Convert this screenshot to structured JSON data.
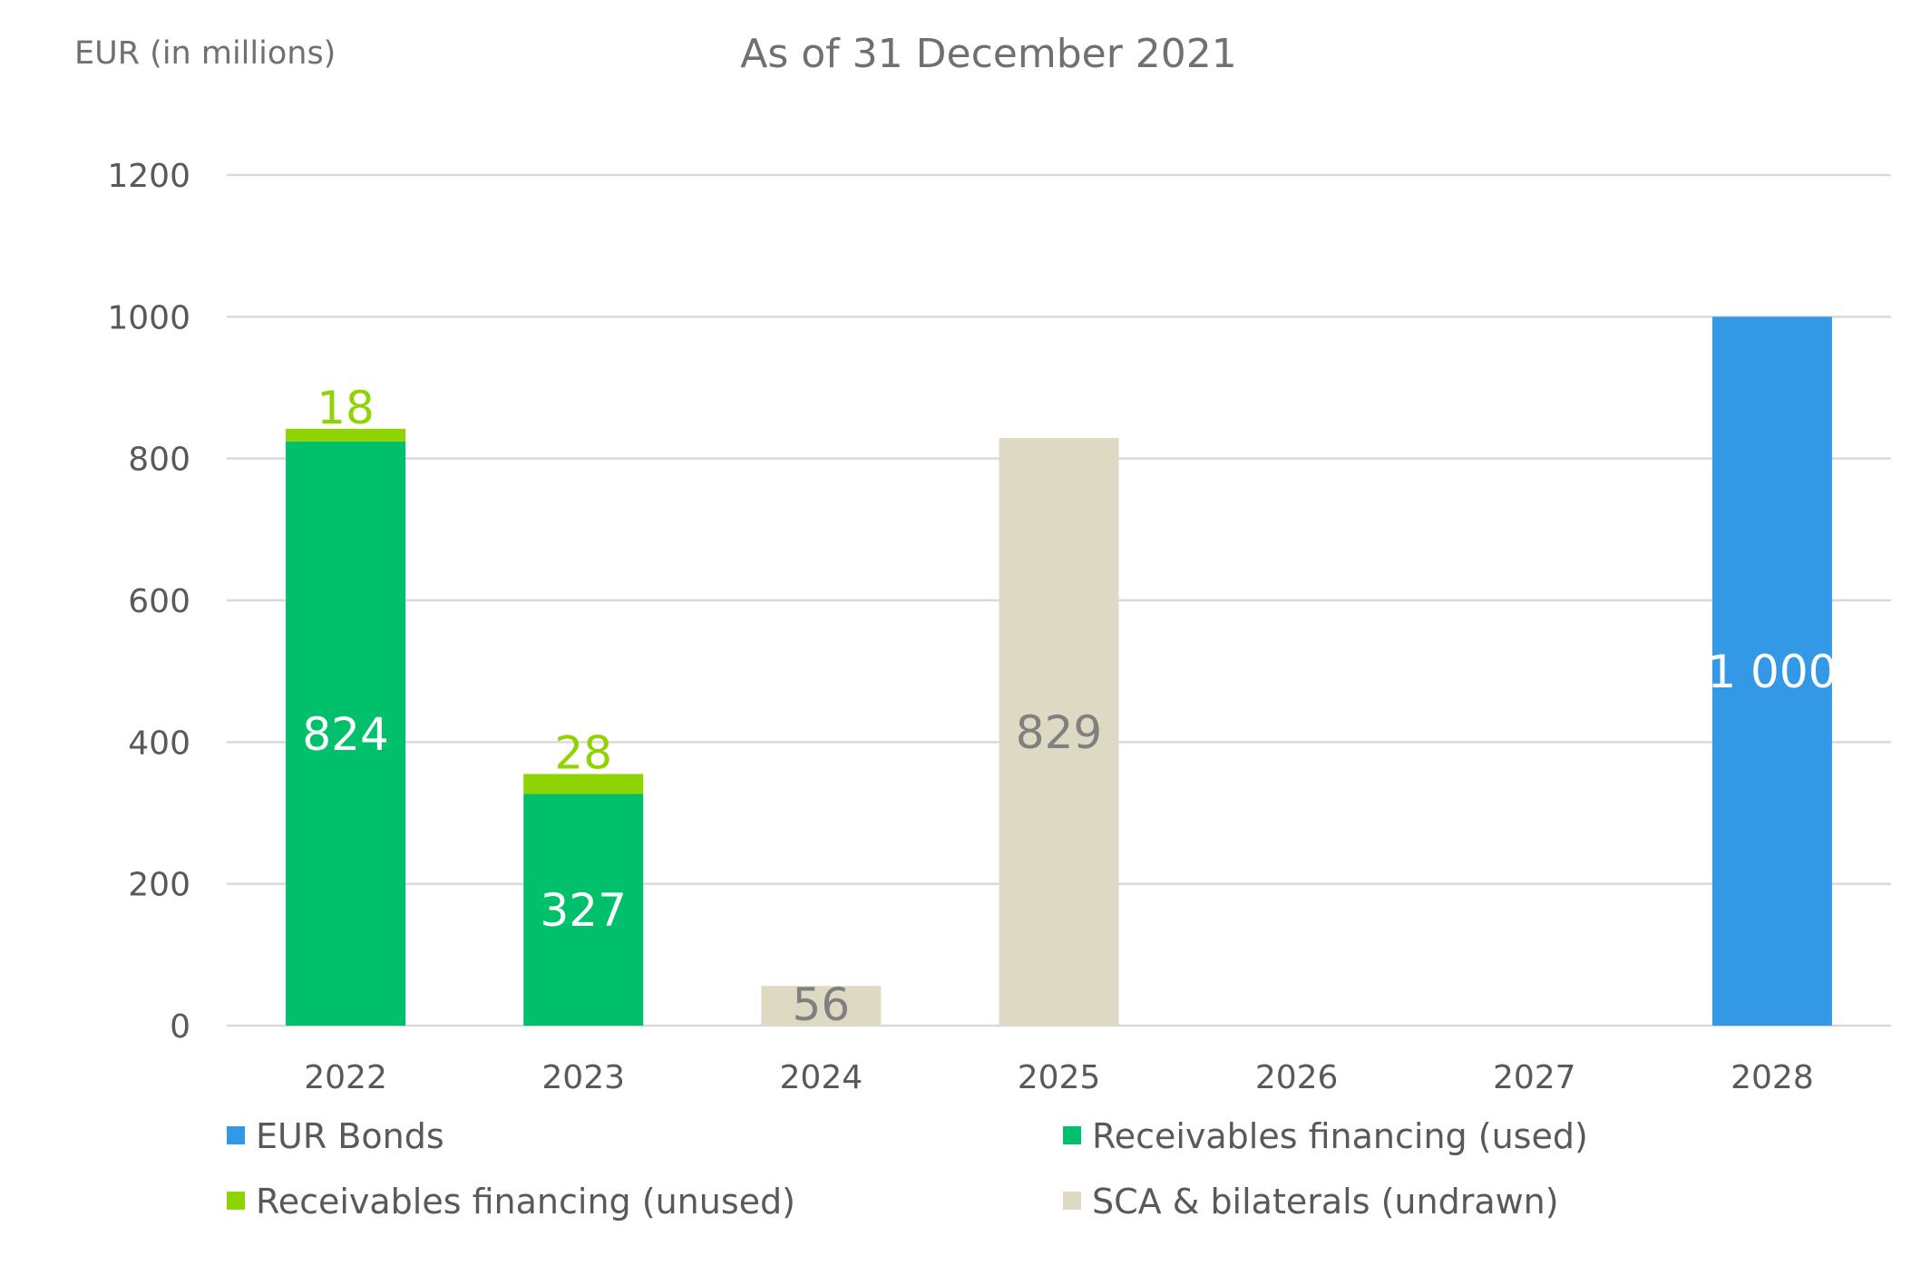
{
  "chart_data": {
    "type": "bar",
    "stacked": true,
    "title": "As of 31 December 2021",
    "ylabel": "EUR (in millions)",
    "categories": [
      "2022",
      "2023",
      "2024",
      "2025",
      "2026",
      "2027",
      "2028"
    ],
    "ylim": [
      0,
      1200
    ],
    "yticks": [
      0,
      200,
      400,
      600,
      800,
      1000,
      1200
    ],
    "ytick_labels": [
      "0",
      "200",
      "400",
      "600",
      "800",
      "1000",
      "1200"
    ],
    "grid": true,
    "legend_position": "bottom",
    "series": [
      {
        "name": "EUR Bonds",
        "color": "#3399e6",
        "label_color": "#ffffff",
        "values": [
          0,
          0,
          0,
          0,
          0,
          0,
          1000
        ],
        "data_labels": [
          "",
          "",
          "",
          "",
          "",
          "",
          "1 000"
        ]
      },
      {
        "name": "Receivables financing (used)",
        "color": "#00c06b",
        "label_color": "#ffffff",
        "values": [
          824,
          327,
          0,
          0,
          0,
          0,
          0
        ],
        "data_labels": [
          "824",
          "327",
          "",
          "",
          "",
          "",
          ""
        ]
      },
      {
        "name": "Receivables financing (unused)",
        "color": "#8fd400",
        "label_color": "#8fd400",
        "values": [
          18,
          28,
          0,
          0,
          0,
          0,
          0
        ],
        "data_labels": [
          "18",
          "28",
          "",
          "",
          "",
          "",
          ""
        ]
      },
      {
        "name": "SCA & bilaterals (undrawn)",
        "color": "#ddd9c3",
        "label_color": "#808080",
        "values": [
          0,
          0,
          56,
          829,
          0,
          0,
          0
        ],
        "data_labels": [
          "",
          "",
          "56",
          "829",
          "",
          "",
          ""
        ]
      }
    ]
  }
}
